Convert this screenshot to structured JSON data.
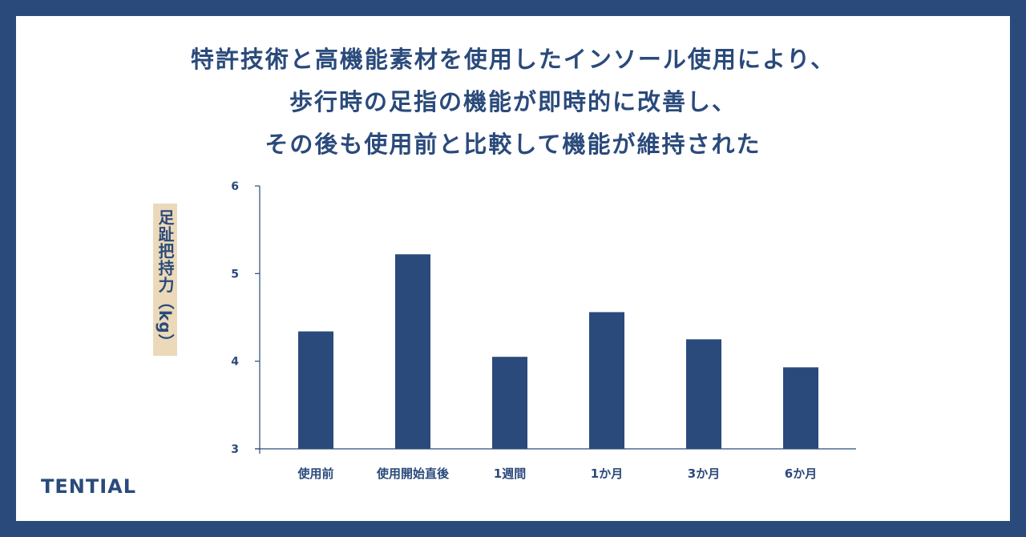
{
  "headline": {
    "line1": "特許技術と高機能素材を使用したインソール使用により、",
    "line2": "歩行時の足指の機能が即時的に改善し、",
    "line3": "その後も使用前と比較して機能が維持された"
  },
  "brand": "TENTIAL",
  "colors": {
    "bar": "#2a4a7b",
    "frame": "#2a4a7b",
    "label_bg": "#ecd9b9"
  },
  "chart_data": {
    "type": "bar",
    "title": "",
    "xlabel": "",
    "ylabel": "足趾把持力（kg）",
    "categories": [
      "使用前",
      "使用開始直後",
      "1週間",
      "1か月",
      "3か月",
      "6か月"
    ],
    "values": [
      4.34,
      5.22,
      4.05,
      4.56,
      4.25,
      3.93
    ],
    "ylim": [
      3,
      6
    ],
    "yticks": [
      "3",
      "4",
      "5",
      "6"
    ],
    "grid": false,
    "legend": "none"
  }
}
